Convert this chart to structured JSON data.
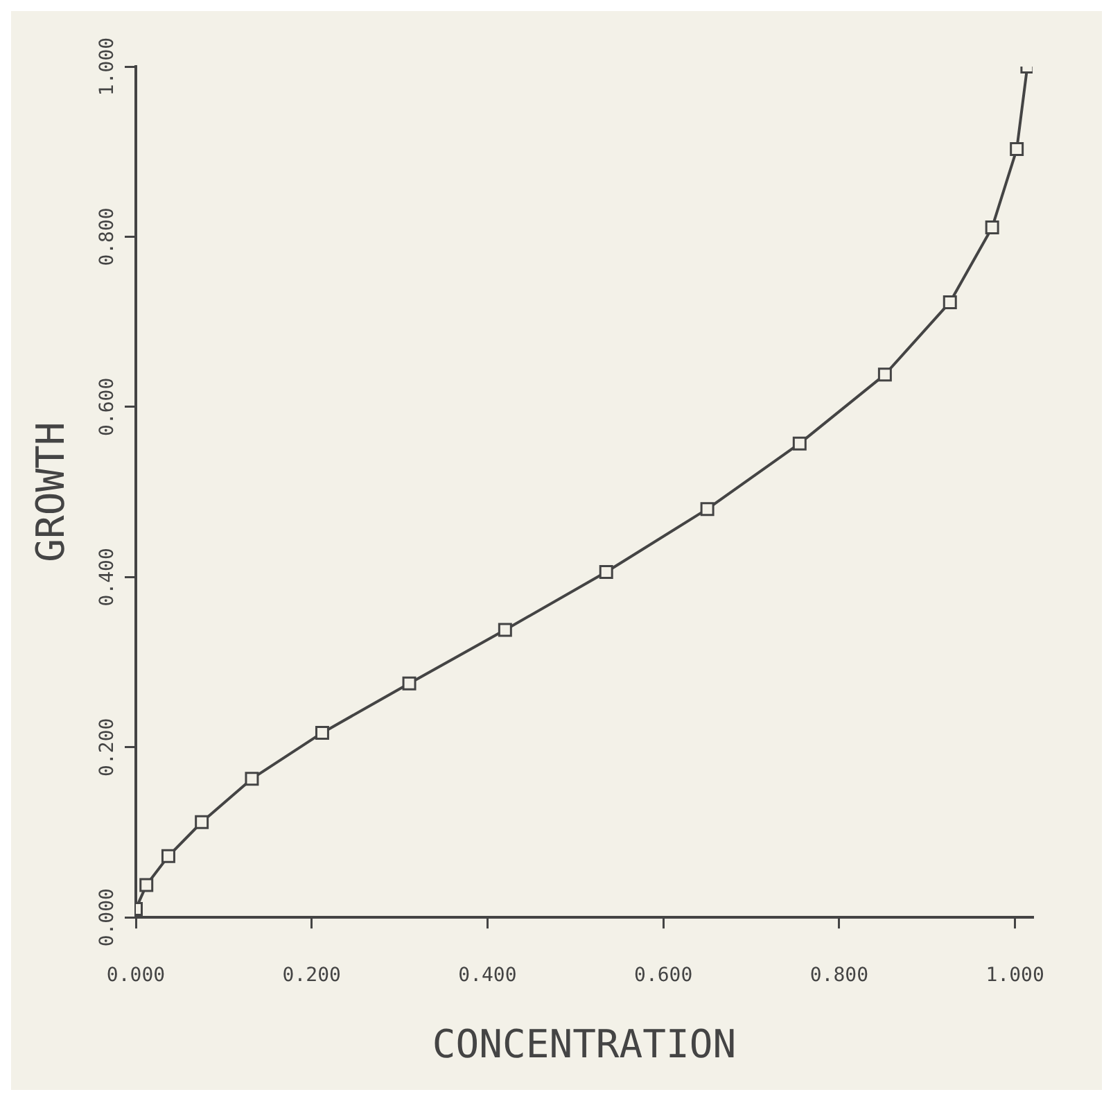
{
  "chart_data": {
    "type": "line",
    "xlabel": "CONCENTRATION",
    "ylabel": "GROWTH",
    "x": [
      0,
      0.012,
      0.037,
      0.075,
      0.132,
      0.212,
      0.311,
      0.42,
      0.535,
      0.65,
      0.755,
      0.852,
      0.926,
      0.974,
      1.002,
      1.014
    ],
    "series": [
      {
        "color": "#444444",
        "values": [
          0.01,
          0.038,
          0.072,
          0.112,
          0.163,
          0.217,
          0.275,
          0.338,
          0.406,
          0.48,
          0.557,
          0.638,
          0.723,
          0.811,
          0.903,
          1.0
        ]
      }
    ],
    "xlim": [
      0,
      1.02
    ],
    "ylim": [
      0,
      1.0
    ],
    "xticks": [
      {
        "value": 0,
        "label": "0.000"
      },
      {
        "value": 0.2,
        "label": "0.200"
      },
      {
        "value": 0.4,
        "label": "0.400"
      },
      {
        "value": 0.6,
        "label": "0.600"
      },
      {
        "value": 0.8,
        "label": "0.800"
      },
      {
        "value": 1,
        "label": "1.000"
      }
    ],
    "yticks": [
      {
        "value": 0,
        "label": "0.000"
      },
      {
        "value": 0.2,
        "label": "0.200"
      },
      {
        "value": 0.4,
        "label": "0.400"
      },
      {
        "value": 0.6,
        "label": "0.600"
      },
      {
        "value": 0.8,
        "label": "0.800"
      },
      {
        "value": 1,
        "label": "1.000"
      }
    ],
    "grid": false,
    "legend": false,
    "marker": "square",
    "line_style": "solid"
  }
}
